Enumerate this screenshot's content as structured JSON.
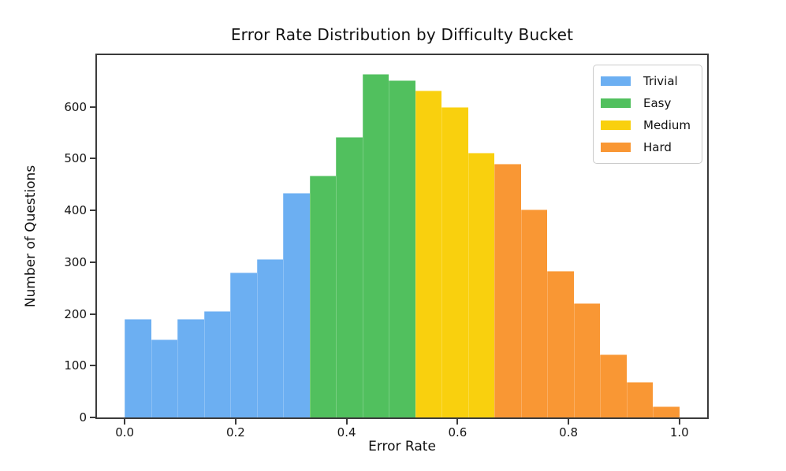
{
  "chart_data": {
    "type": "bar",
    "subtype": "histogram",
    "title": "Error Rate Distribution by Difficulty Bucket",
    "xlabel": "Error Rate",
    "ylabel": "Number of Questions",
    "xlim": [
      -0.05,
      1.05
    ],
    "ylim": [
      0,
      700
    ],
    "grid": false,
    "x_ticks": [
      0.0,
      0.2,
      0.4,
      0.6,
      0.8,
      1.0
    ],
    "x_tick_labels": [
      "0.0",
      "0.2",
      "0.4",
      "0.6",
      "0.8",
      "1.0"
    ],
    "y_ticks": [
      0,
      100,
      200,
      300,
      400,
      500,
      600
    ],
    "y_tick_labels": [
      "0",
      "100",
      "200",
      "300",
      "400",
      "500",
      "600"
    ],
    "bin_start": 0.0,
    "bin_width": 0.047619,
    "n_bins": 21,
    "series": [
      {
        "name": "Trivial",
        "color": "#6caff2",
        "bin_range": [
          0.0,
          0.333
        ],
        "values": [
          190,
          150,
          190,
          205,
          280,
          306,
          434
        ]
      },
      {
        "name": "Easy",
        "color": "#51c05e",
        "bin_range": [
          0.333,
          0.524
        ],
        "values": [
          467,
          542,
          663,
          651
        ]
      },
      {
        "name": "Medium",
        "color": "#f9d00e",
        "bin_range": [
          0.524,
          0.667
        ],
        "values": [
          632,
          599,
          511
        ]
      },
      {
        "name": "Hard",
        "color": "#f99734",
        "bin_range": [
          0.667,
          1.0
        ],
        "values": [
          490,
          402,
          283,
          220,
          122,
          69,
          21
        ]
      }
    ],
    "legend": {
      "position": "upper right",
      "entries": [
        {
          "label": "Trivial",
          "color": "#6caff2"
        },
        {
          "label": "Easy",
          "color": "#51c05e"
        },
        {
          "label": "Medium",
          "color": "#f9d00e"
        },
        {
          "label": "Hard",
          "color": "#f99734"
        }
      ]
    }
  }
}
